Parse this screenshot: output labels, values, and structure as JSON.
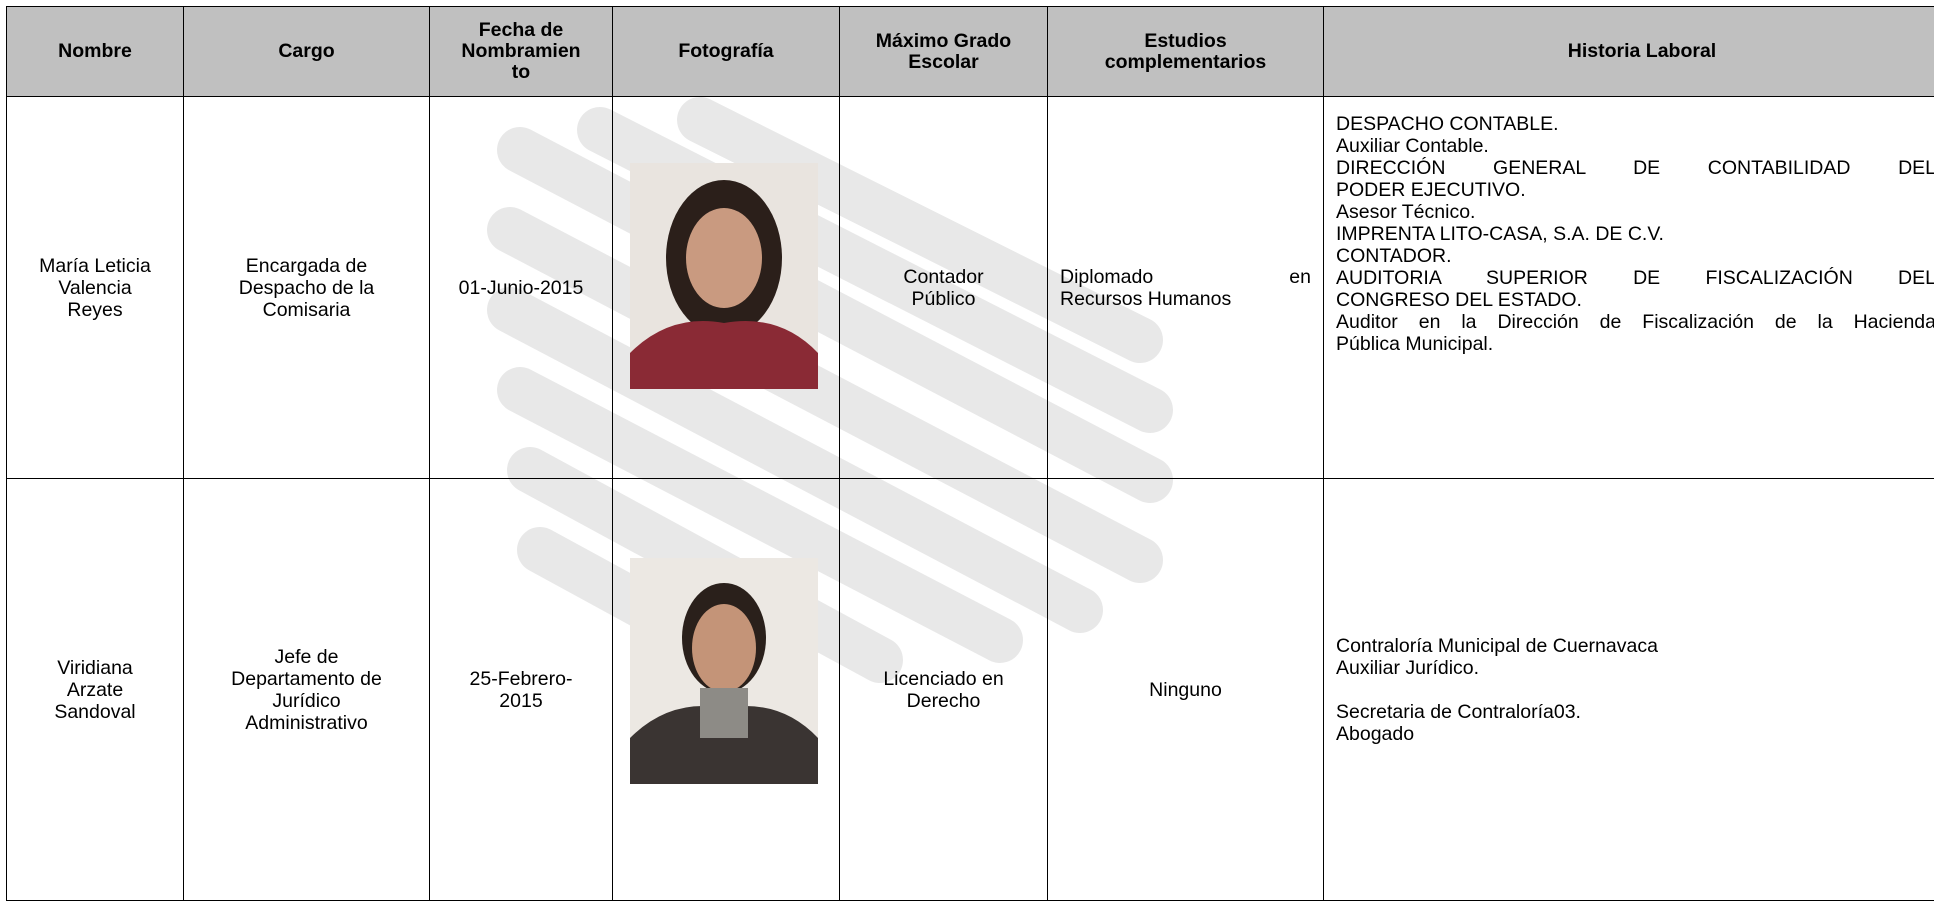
{
  "table": {
    "headers": [
      [
        "Nombre"
      ],
      [
        "Cargo"
      ],
      [
        "Fecha de",
        "Nombramien",
        "to"
      ],
      [
        "Fotografía"
      ],
      [
        "Máximo Grado",
        "Escolar"
      ],
      [
        "Estudios",
        "complementarios"
      ],
      [
        "Historia Laboral"
      ]
    ],
    "rows": [
      {
        "nombre": [
          "María Leticia",
          "Valencia",
          "Reyes"
        ],
        "cargo": [
          "Encargada de",
          "Despacho de la",
          "Comisaria"
        ],
        "fecha": [
          "01-Junio-2015"
        ],
        "grado": [
          "Contador",
          "Público"
        ],
        "estudios": [
          [
            [
              "Diplomado en",
              "Recursos Humanos"
            ]
          ]
        ],
        "historia": [
          [
            [
              "DESPACHO CONTABLE."
            ],
            [
              "Auxiliar Contable."
            ],
            [
              "DIRECCIÓN GENERAL DE CONTABILIDAD DEL",
              "PODER EJECUTIVO."
            ],
            [
              "Asesor Técnico."
            ],
            [
              "IMPRENTA LITO-CASA, S.A. DE C.V."
            ],
            [
              "CONTADOR."
            ],
            [
              "AUDITORIA SUPERIOR DE FISCALIZACIÓN DEL",
              "CONGRESO DEL ESTADO."
            ],
            [
              "Auditor en la Dirección de Fiscalización de la Hacienda",
              "Pública Municipal."
            ]
          ]
        ]
      },
      {
        "nombre": [
          "Viridiana",
          "Arzate",
          "Sandoval"
        ],
        "cargo": [
          "Jefe de",
          "Departamento de",
          "Jurídico",
          "Administrativo"
        ],
        "fecha": [
          "25-Febrero-",
          "2015"
        ],
        "grado": [
          "Licenciado en",
          "Derecho"
        ],
        "estudios": [
          [
            [
              "Ninguno"
            ]
          ]
        ],
        "historia": [
          [
            [
              "Contraloría Municipal de Cuernavaca"
            ],
            [
              "Auxiliar Jurídico."
            ]
          ],
          [
            [
              "Secretaria de Contraloría03."
            ],
            [
              "Abogado"
            ]
          ]
        ]
      }
    ]
  }
}
